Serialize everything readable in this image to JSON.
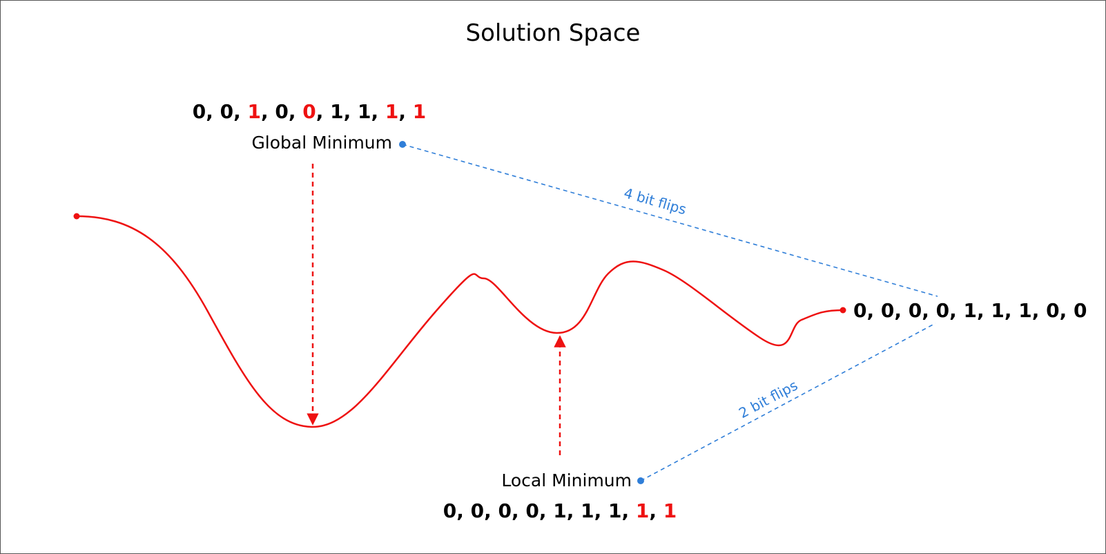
{
  "title": "Solution Space",
  "colors": {
    "curve": "#ee1111",
    "highlight": "#ee1111",
    "connector": "#2f7ed8",
    "text": "#000000"
  },
  "global_minimum": {
    "label": "Global Minimum",
    "bits": [
      {
        "v": "0",
        "flipped": false
      },
      {
        "v": "0",
        "flipped": false
      },
      {
        "v": "1",
        "flipped": true
      },
      {
        "v": "0",
        "flipped": false
      },
      {
        "v": "0",
        "flipped": true
      },
      {
        "v": "1",
        "flipped": false
      },
      {
        "v": "1",
        "flipped": false
      },
      {
        "v": "1",
        "flipped": true
      },
      {
        "v": "1",
        "flipped": true
      }
    ]
  },
  "local_minimum": {
    "label": "Local Minimum",
    "bits": [
      {
        "v": "0",
        "flipped": false
      },
      {
        "v": "0",
        "flipped": false
      },
      {
        "v": "0",
        "flipped": false
      },
      {
        "v": "0",
        "flipped": false
      },
      {
        "v": "1",
        "flipped": false
      },
      {
        "v": "1",
        "flipped": false
      },
      {
        "v": "1",
        "flipped": false
      },
      {
        "v": "1",
        "flipped": true
      },
      {
        "v": "1",
        "flipped": true
      }
    ]
  },
  "current_solution": {
    "bits": [
      {
        "v": "0",
        "flipped": false
      },
      {
        "v": "0",
        "flipped": false
      },
      {
        "v": "0",
        "flipped": false
      },
      {
        "v": "0",
        "flipped": false
      },
      {
        "v": "1",
        "flipped": false
      },
      {
        "v": "1",
        "flipped": false
      },
      {
        "v": "1",
        "flipped": false
      },
      {
        "v": "0",
        "flipped": false
      },
      {
        "v": "0",
        "flipped": false
      }
    ]
  },
  "connectors": {
    "to_global": "4 bit flips",
    "to_local": "2 bit flips"
  }
}
